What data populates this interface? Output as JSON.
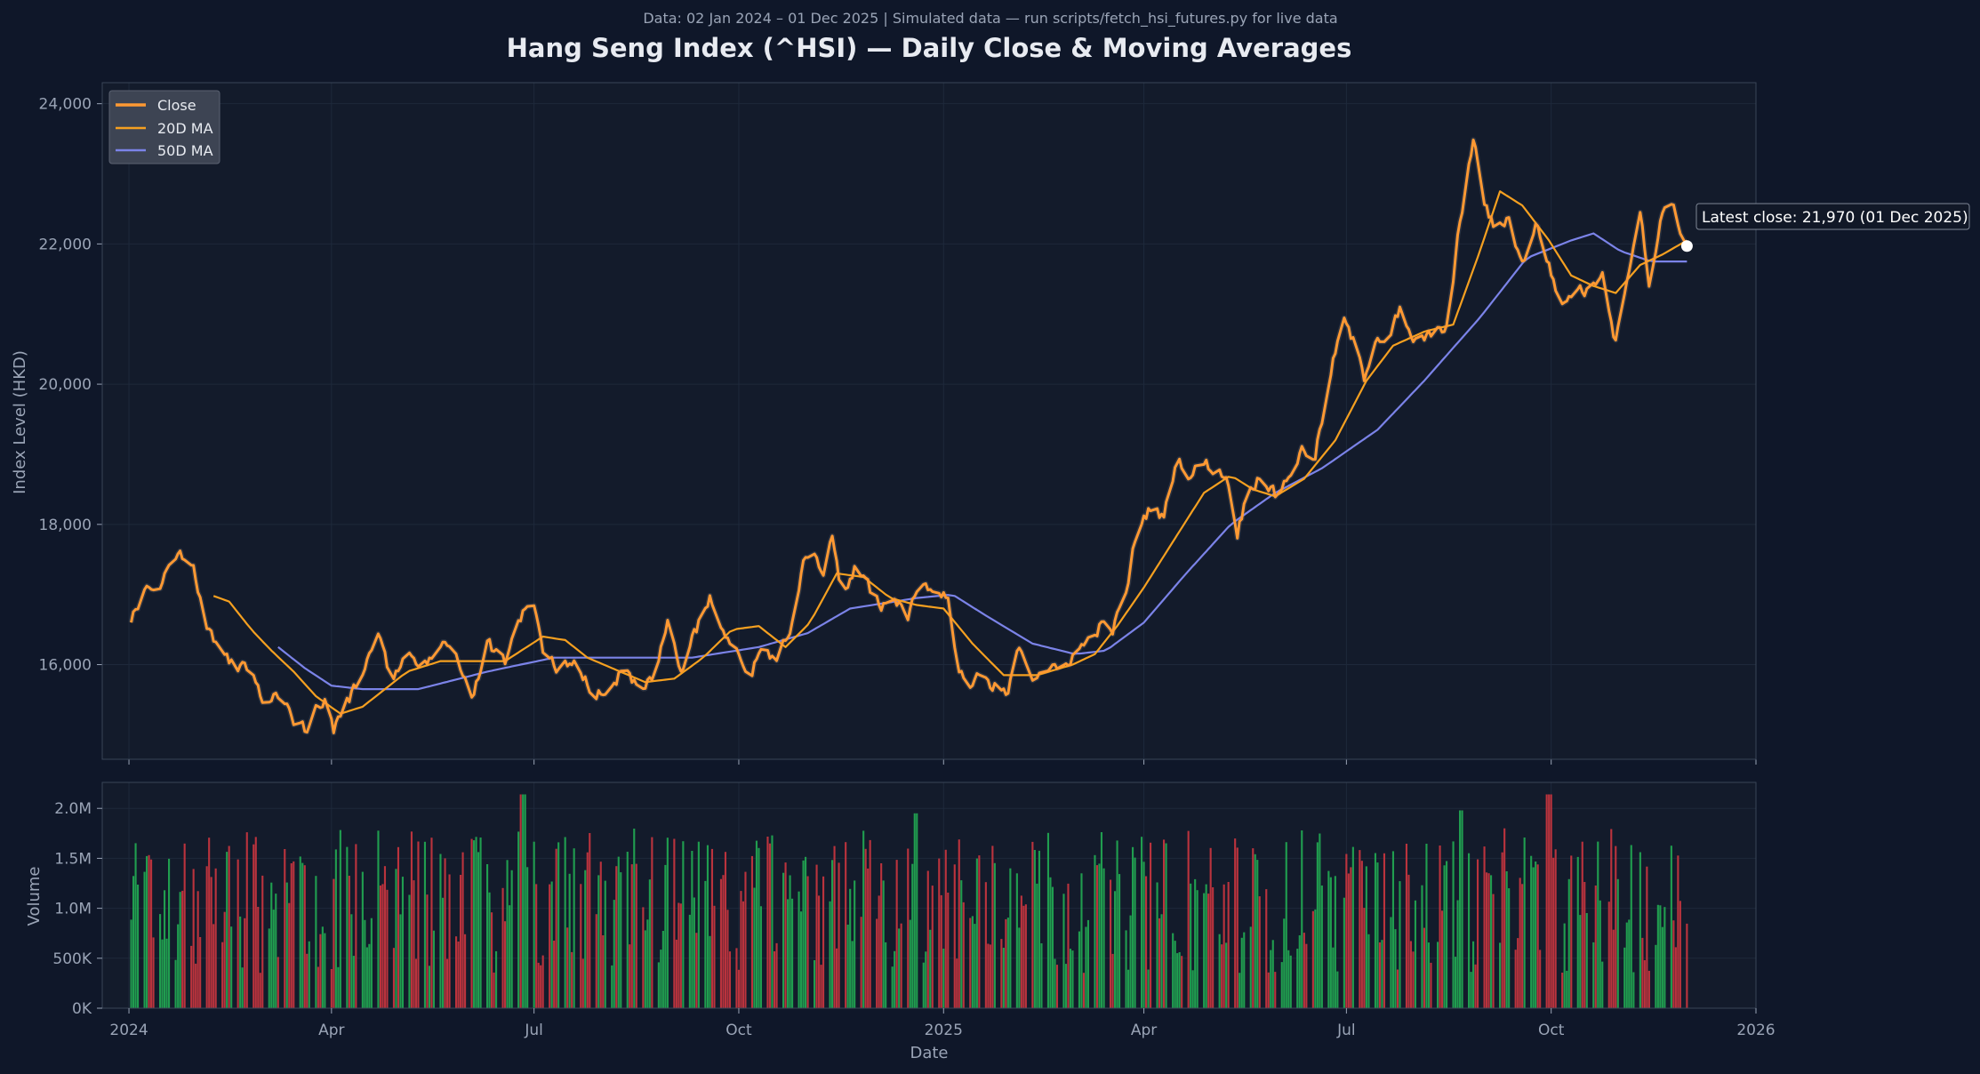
{
  "header": {
    "subtitle": "Data: 02 Jan 2024 – 01 Dec 2025  |  Simulated data — run scripts/fetch_hsi_futures.py for live data",
    "title": "Hang Seng Index (^HSI)  —  Daily Close & Moving Averages"
  },
  "annotation": {
    "text": "Latest close: 21,970  (01 Dec 2025)"
  },
  "colors": {
    "page_bg": "#0f1729",
    "plot_bg": "#131b2b",
    "frame": "#3a4557",
    "grid": "#1e293b",
    "tick_text": "#9aa4b6",
    "title_text": "#e8ebf1",
    "close": "#ff9933",
    "ma20": "#f5a020",
    "ma50": "#7b83e8",
    "up_volume": "#22a853",
    "down_volume": "#c9353f",
    "legend_bg": "#3d4453",
    "marker": "#ffffff"
  },
  "chart_data": [
    {
      "type": "line",
      "title": "Hang Seng Index (^HSI)  —  Daily Close & Moving Averages",
      "xlabel": "",
      "ylabel": "Index Level (HKD)",
      "x_range": [
        "2023-12-20",
        "2026-01-01"
      ],
      "ylim": [
        14650,
        24300
      ],
      "yticks": [
        16000,
        18000,
        20000,
        22000,
        24000
      ],
      "ytick_labels": [
        "16,000",
        "18,000",
        "20,000",
        "22,000",
        "24,000"
      ],
      "grid": true,
      "legend_position": "top-left",
      "series": [
        {
          "name": "Close",
          "start": "2024-01-02",
          "end": "2025-12-01",
          "knots": [
            [
              "2024-01-02",
              16600
            ],
            [
              "2024-01-08",
              17050
            ],
            [
              "2024-01-14",
              17000
            ],
            [
              "2024-01-20",
              17500
            ],
            [
              "2024-01-25",
              17550
            ],
            [
              "2024-01-30",
              17450
            ],
            [
              "2024-02-05",
              16500
            ],
            [
              "2024-02-12",
              16200
            ],
            [
              "2024-02-18",
              15950
            ],
            [
              "2024-02-25",
              15900
            ],
            [
              "2024-03-02",
              15400
            ],
            [
              "2024-03-10",
              15600
            ],
            [
              "2024-03-15",
              15200
            ],
            [
              "2024-03-20",
              15050
            ],
            [
              "2024-03-25",
              15400
            ],
            [
              "2024-03-30",
              15600
            ],
            [
              "2024-04-02",
              15100
            ],
            [
              "2024-04-08",
              15450
            ],
            [
              "2024-04-15",
              15900
            ],
            [
              "2024-04-22",
              16450
            ],
            [
              "2024-04-28",
              15800
            ],
            [
              "2024-05-05",
              16200
            ],
            [
              "2024-05-12",
              15950
            ],
            [
              "2024-05-20",
              16350
            ],
            [
              "2024-05-28",
              16100
            ],
            [
              "2024-06-04",
              15550
            ],
            [
              "2024-06-10",
              16300
            ],
            [
              "2024-06-18",
              16050
            ],
            [
              "2024-06-24",
              16650
            ],
            [
              "2024-06-30",
              16950
            ],
            [
              "2024-07-05",
              16200
            ],
            [
              "2024-07-12",
              15950
            ],
            [
              "2024-07-20",
              16100
            ],
            [
              "2024-07-26",
              15700
            ],
            [
              "2024-08-02",
              15550
            ],
            [
              "2024-08-10",
              15950
            ],
            [
              "2024-08-18",
              15650
            ],
            [
              "2024-08-24",
              15850
            ],
            [
              "2024-08-30",
              16550
            ],
            [
              "2024-09-05",
              15950
            ],
            [
              "2024-09-12",
              16500
            ],
            [
              "2024-09-18",
              17000
            ],
            [
              "2024-09-24",
              16400
            ],
            [
              "2024-09-30",
              16250
            ],
            [
              "2024-10-06",
              15900
            ],
            [
              "2024-10-12",
              16300
            ],
            [
              "2024-10-18",
              16050
            ],
            [
              "2024-10-24",
              16550
            ],
            [
              "2024-10-30",
              17500
            ],
            [
              "2024-11-04",
              17650
            ],
            [
              "2024-11-08",
              17250
            ],
            [
              "2024-11-12",
              17800
            ],
            [
              "2024-11-16",
              17050
            ],
            [
              "2024-11-22",
              17350
            ],
            [
              "2024-11-28",
              17100
            ],
            [
              "2024-12-04",
              16850
            ],
            [
              "2024-12-10",
              17000
            ],
            [
              "2024-12-16",
              16700
            ],
            [
              "2024-12-22",
              17300
            ],
            [
              "2024-12-28",
              17000
            ],
            [
              "2025-01-03",
              16950
            ],
            [
              "2025-01-08",
              15900
            ],
            [
              "2025-01-13",
              15650
            ],
            [
              "2025-01-18",
              15850
            ],
            [
              "2025-01-24",
              15700
            ],
            [
              "2025-01-30",
              15550
            ],
            [
              "2025-02-04",
              16300
            ],
            [
              "2025-02-10",
              15850
            ],
            [
              "2025-02-16",
              16000
            ],
            [
              "2025-02-22",
              15850
            ],
            [
              "2025-02-28",
              16150
            ],
            [
              "2025-03-06",
              16300
            ],
            [
              "2025-03-12",
              16550
            ],
            [
              "2025-03-18",
              16500
            ],
            [
              "2025-03-24",
              17000
            ],
            [
              "2025-03-29",
              17950
            ],
            [
              "2025-04-04",
              18250
            ],
            [
              "2025-04-10",
              18100
            ],
            [
              "2025-04-16",
              18950
            ],
            [
              "2025-04-22",
              18700
            ],
            [
              "2025-04-27",
              18900
            ],
            [
              "2025-05-02",
              18800
            ],
            [
              "2025-05-08",
              18700
            ],
            [
              "2025-05-13",
              17900
            ],
            [
              "2025-05-18",
              18500
            ],
            [
              "2025-05-24",
              18750
            ],
            [
              "2025-05-30",
              18400
            ],
            [
              "2025-06-05",
              18700
            ],
            [
              "2025-06-11",
              19050
            ],
            [
              "2025-06-17",
              19000
            ],
            [
              "2025-06-23",
              19950
            ],
            [
              "2025-06-29",
              20950
            ],
            [
              "2025-07-04",
              20600
            ],
            [
              "2025-07-09",
              20100
            ],
            [
              "2025-07-14",
              20700
            ],
            [
              "2025-07-20",
              20650
            ],
            [
              "2025-07-25",
              21050
            ],
            [
              "2025-07-30",
              20600
            ],
            [
              "2025-08-05",
              20650
            ],
            [
              "2025-08-10",
              20700
            ],
            [
              "2025-08-16",
              20900
            ],
            [
              "2025-08-21",
              22300
            ],
            [
              "2025-08-27",
              23500
            ],
            [
              "2025-09-01",
              22600
            ],
            [
              "2025-09-06",
              22150
            ],
            [
              "2025-09-12",
              22400
            ],
            [
              "2025-09-18",
              21700
            ],
            [
              "2025-09-24",
              22300
            ],
            [
              "2025-09-30",
              21700
            ],
            [
              "2025-10-06",
              21100
            ],
            [
              "2025-10-12",
              21400
            ],
            [
              "2025-10-18",
              21300
            ],
            [
              "2025-10-24",
              21650
            ],
            [
              "2025-10-30",
              20600
            ],
            [
              "2025-11-04",
              21550
            ],
            [
              "2025-11-10",
              22450
            ],
            [
              "2025-11-14",
              21400
            ],
            [
              "2025-11-18",
              22150
            ],
            [
              "2025-11-22",
              22750
            ],
            [
              "2025-11-27",
              22300
            ],
            [
              "2025-12-01",
              21970
            ]
          ]
        },
        {
          "name": "20D MA",
          "start": "2024-02-08",
          "end": "2025-12-01",
          "knots": [
            [
              "2024-02-08",
              16980
            ],
            [
              "2024-02-15",
              16900
            ],
            [
              "2024-02-25",
              16500
            ],
            [
              "2024-03-05",
              16200
            ],
            [
              "2024-03-15",
              15900
            ],
            [
              "2024-03-25",
              15550
            ],
            [
              "2024-04-05",
              15300
            ],
            [
              "2024-04-15",
              15400
            ],
            [
              "2024-04-25",
              15650
            ],
            [
              "2024-05-05",
              15900
            ],
            [
              "2024-05-20",
              16050
            ],
            [
              "2024-06-05",
              16050
            ],
            [
              "2024-06-18",
              16050
            ],
            [
              "2024-07-05",
              16400
            ],
            [
              "2024-07-15",
              16350
            ],
            [
              "2024-07-25",
              16100
            ],
            [
              "2024-08-05",
              15950
            ],
            [
              "2024-08-20",
              15750
            ],
            [
              "2024-09-02",
              15800
            ],
            [
              "2024-09-15",
              16100
            ],
            [
              "2024-09-28",
              16500
            ],
            [
              "2024-10-10",
              16550
            ],
            [
              "2024-10-22",
              16250
            ],
            [
              "2024-11-02",
              16600
            ],
            [
              "2024-11-14",
              17300
            ],
            [
              "2024-11-26",
              17250
            ],
            [
              "2024-12-08",
              16950
            ],
            [
              "2024-12-20",
              16850
            ],
            [
              "2025-01-01",
              16800
            ],
            [
              "2025-01-14",
              16300
            ],
            [
              "2025-01-28",
              15850
            ],
            [
              "2025-02-12",
              15850
            ],
            [
              "2025-02-28",
              16000
            ],
            [
              "2025-03-10",
              16150
            ],
            [
              "2025-03-20",
              16550
            ],
            [
              "2025-04-01",
              17100
            ],
            [
              "2025-04-15",
              17800
            ],
            [
              "2025-04-28",
              18450
            ],
            [
              "2025-05-10",
              18700
            ],
            [
              "2025-05-20",
              18500
            ],
            [
              "2025-05-30",
              18400
            ],
            [
              "2025-06-12",
              18650
            ],
            [
              "2025-06-26",
              19200
            ],
            [
              "2025-07-10",
              20050
            ],
            [
              "2025-07-22",
              20550
            ],
            [
              "2025-08-05",
              20750
            ],
            [
              "2025-08-18",
              20850
            ],
            [
              "2025-08-30",
              21900
            ],
            [
              "2025-09-08",
              22750
            ],
            [
              "2025-09-18",
              22550
            ],
            [
              "2025-09-30",
              22050
            ],
            [
              "2025-10-10",
              21550
            ],
            [
              "2025-10-20",
              21400
            ],
            [
              "2025-10-30",
              21300
            ],
            [
              "2025-11-10",
              21700
            ],
            [
              "2025-11-20",
              21850
            ],
            [
              "2025-12-01",
              22050
            ]
          ]
        },
        {
          "name": "50D MA",
          "start": "2024-03-08",
          "end": "2025-12-01",
          "knots": [
            [
              "2024-03-08",
              16250
            ],
            [
              "2024-03-20",
              15950
            ],
            [
              "2024-04-01",
              15700
            ],
            [
              "2024-04-15",
              15650
            ],
            [
              "2024-05-10",
              15650
            ],
            [
              "2024-06-10",
              15900
            ],
            [
              "2024-07-10",
              16100
            ],
            [
              "2024-08-10",
              16100
            ],
            [
              "2024-09-10",
              16100
            ],
            [
              "2024-10-10",
              16250
            ],
            [
              "2024-11-01",
              16450
            ],
            [
              "2024-11-20",
              16800
            ],
            [
              "2024-12-20",
              16950
            ],
            [
              "2025-01-05",
              17000
            ],
            [
              "2025-01-20",
              16700
            ],
            [
              "2025-02-10",
              16300
            ],
            [
              "2025-03-01",
              16150
            ],
            [
              "2025-03-15",
              16200
            ],
            [
              "2025-04-01",
              16600
            ],
            [
              "2025-04-20",
              17300
            ],
            [
              "2025-05-10",
              18000
            ],
            [
              "2025-05-30",
              18450
            ],
            [
              "2025-06-20",
              18800
            ],
            [
              "2025-07-15",
              19350
            ],
            [
              "2025-08-05",
              20050
            ],
            [
              "2025-08-30",
              20950
            ],
            [
              "2025-09-20",
              21800
            ],
            [
              "2025-10-10",
              22050
            ],
            [
              "2025-10-20",
              22150
            ],
            [
              "2025-11-01",
              21900
            ],
            [
              "2025-11-15",
              21750
            ],
            [
              "2025-12-01",
              21750
            ]
          ]
        }
      ]
    },
    {
      "type": "bar",
      "title": "",
      "xlabel": "Date",
      "ylabel": "Volume",
      "x_range": [
        "2023-12-20",
        "2026-01-01"
      ],
      "ylim": [
        0,
        2260000
      ],
      "yticks": [
        0,
        500000,
        1000000,
        1500000,
        2000000
      ],
      "ytick_labels": [
        "0K",
        "500K",
        "1.0M",
        "1.5M",
        "2.0M"
      ],
      "xticks": [
        "2024-01-01",
        "2024-04-01",
        "2024-07-01",
        "2024-10-01",
        "2025-01-01",
        "2025-04-01",
        "2025-07-01",
        "2025-10-01",
        "2026-01-01"
      ],
      "xtick_labels": [
        "2024",
        "Apr",
        "Jul",
        "Oct",
        "2025",
        "Apr",
        "Jul",
        "Oct",
        "2026"
      ],
      "grid": true,
      "note": "daily volume bars, green on up days and red on down days, mostly between 0.35M and 1.9M",
      "peaks": [
        [
          "2024-06-26",
          2140000
        ],
        [
          "2025-09-30",
          2140000
        ],
        [
          "2025-08-22",
          1980000
        ],
        [
          "2024-12-20",
          1950000
        ]
      ]
    }
  ]
}
